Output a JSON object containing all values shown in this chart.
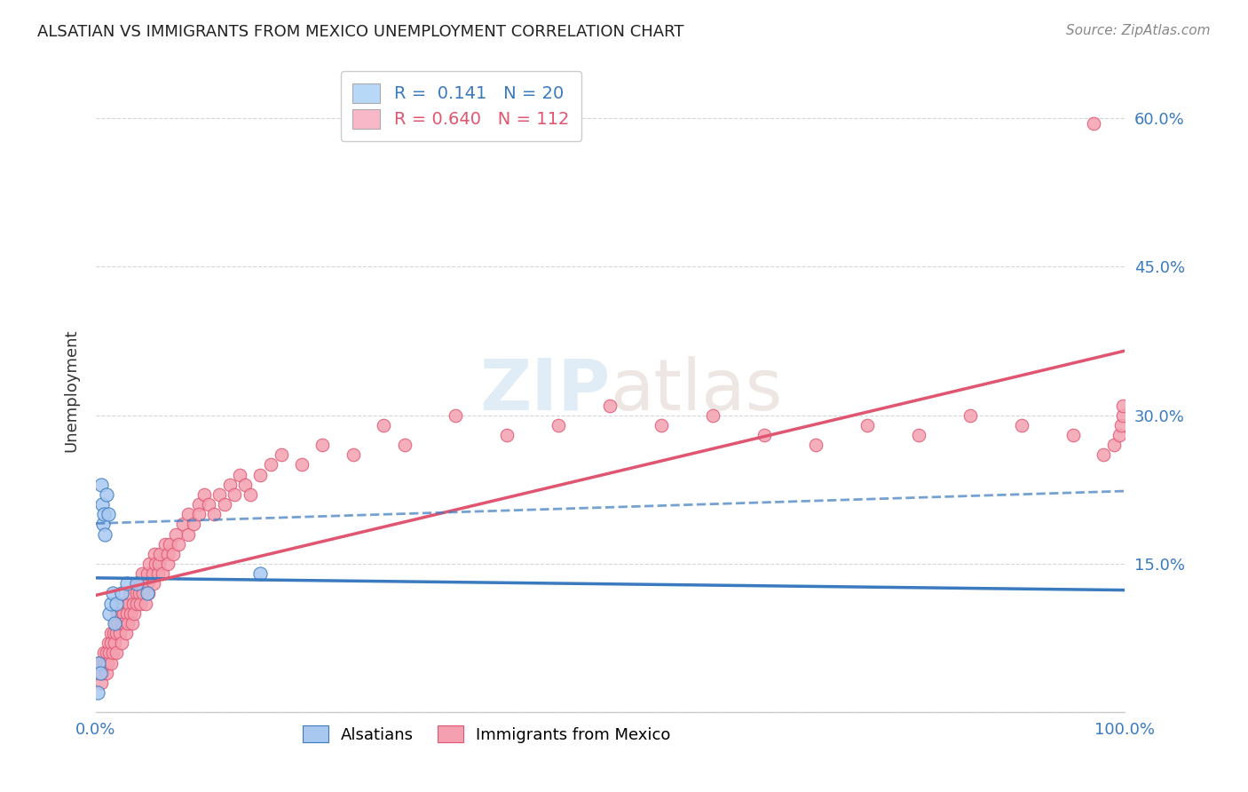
{
  "title": "ALSATIAN VS IMMIGRANTS FROM MEXICO UNEMPLOYMENT CORRELATION CHART",
  "source": "Source: ZipAtlas.com",
  "ylabel": "Unemployment",
  "xlim": [
    0,
    1.0
  ],
  "ylim": [
    0,
    0.65
  ],
  "xtick_positions": [
    0.0,
    0.1,
    0.2,
    0.3,
    0.4,
    0.5,
    0.6,
    0.7,
    0.8,
    0.9,
    1.0
  ],
  "xtick_labels": [
    "0.0%",
    "",
    "",
    "",
    "",
    "",
    "",
    "",
    "",
    "",
    "100.0%"
  ],
  "ytick_positions": [
    0.0,
    0.15,
    0.3,
    0.45,
    0.6
  ],
  "ytick_labels_right": [
    "",
    "15.0%",
    "30.0%",
    "45.0%",
    "60.0%"
  ],
  "grid_color": "#cccccc",
  "background_color": "#ffffff",
  "alsatians_color": "#a8c8f0",
  "mexico_color": "#f4a0b0",
  "line_alsatians_color": "#3a7abf",
  "line_mexico_color": "#e05570",
  "legend_box_color_1": "#b8d8f8",
  "legend_box_color_2": "#f8b8c8",
  "alsatians_x": [
    0.002,
    0.003,
    0.004,
    0.005,
    0.006,
    0.007,
    0.008,
    0.009,
    0.01,
    0.012,
    0.013,
    0.015,
    0.016,
    0.018,
    0.02,
    0.025,
    0.03,
    0.04,
    0.05,
    0.16
  ],
  "alsatians_y": [
    0.02,
    0.05,
    0.04,
    0.23,
    0.21,
    0.19,
    0.2,
    0.18,
    0.22,
    0.2,
    0.1,
    0.11,
    0.12,
    0.09,
    0.11,
    0.12,
    0.13,
    0.13,
    0.12,
    0.14
  ],
  "mexico_x": [
    0.002,
    0.003,
    0.004,
    0.005,
    0.006,
    0.007,
    0.008,
    0.009,
    0.01,
    0.01,
    0.011,
    0.012,
    0.013,
    0.015,
    0.015,
    0.015,
    0.016,
    0.017,
    0.018,
    0.019,
    0.02,
    0.02,
    0.021,
    0.022,
    0.023,
    0.024,
    0.025,
    0.025,
    0.026,
    0.027,
    0.028,
    0.029,
    0.03,
    0.031,
    0.032,
    0.033,
    0.034,
    0.035,
    0.036,
    0.037,
    0.04,
    0.04,
    0.041,
    0.042,
    0.043,
    0.045,
    0.045,
    0.046,
    0.048,
    0.05,
    0.05,
    0.051,
    0.052,
    0.055,
    0.056,
    0.057,
    0.058,
    0.06,
    0.061,
    0.062,
    0.065,
    0.067,
    0.07,
    0.07,
    0.072,
    0.075,
    0.078,
    0.08,
    0.085,
    0.09,
    0.09,
    0.095,
    0.1,
    0.1,
    0.105,
    0.11,
    0.115,
    0.12,
    0.125,
    0.13,
    0.135,
    0.14,
    0.145,
    0.15,
    0.16,
    0.17,
    0.18,
    0.2,
    0.22,
    0.25,
    0.28,
    0.3,
    0.35,
    0.4,
    0.45,
    0.5,
    0.55,
    0.6,
    0.65,
    0.7,
    0.75,
    0.8,
    0.85,
    0.9,
    0.95,
    0.98,
    0.99,
    0.995,
    0.997,
    0.999,
    0.999,
    0.97
  ],
  "mexico_y": [
    0.05,
    0.04,
    0.05,
    0.03,
    0.04,
    0.05,
    0.06,
    0.05,
    0.04,
    0.06,
    0.05,
    0.07,
    0.06,
    0.05,
    0.08,
    0.07,
    0.06,
    0.08,
    0.07,
    0.09,
    0.06,
    0.08,
    0.1,
    0.09,
    0.08,
    0.1,
    0.07,
    0.09,
    0.11,
    0.1,
    0.09,
    0.08,
    0.1,
    0.09,
    0.11,
    0.12,
    0.1,
    0.09,
    0.11,
    0.1,
    0.12,
    0.11,
    0.13,
    0.12,
    0.11,
    0.13,
    0.14,
    0.12,
    0.11,
    0.13,
    0.14,
    0.12,
    0.15,
    0.14,
    0.13,
    0.16,
    0.15,
    0.14,
    0.15,
    0.16,
    0.14,
    0.17,
    0.16,
    0.15,
    0.17,
    0.16,
    0.18,
    0.17,
    0.19,
    0.2,
    0.18,
    0.19,
    0.21,
    0.2,
    0.22,
    0.21,
    0.2,
    0.22,
    0.21,
    0.23,
    0.22,
    0.24,
    0.23,
    0.22,
    0.24,
    0.25,
    0.26,
    0.25,
    0.27,
    0.26,
    0.29,
    0.27,
    0.3,
    0.28,
    0.29,
    0.31,
    0.29,
    0.3,
    0.28,
    0.27,
    0.29,
    0.28,
    0.3,
    0.29,
    0.28,
    0.26,
    0.27,
    0.28,
    0.29,
    0.3,
    0.31,
    0.595
  ]
}
